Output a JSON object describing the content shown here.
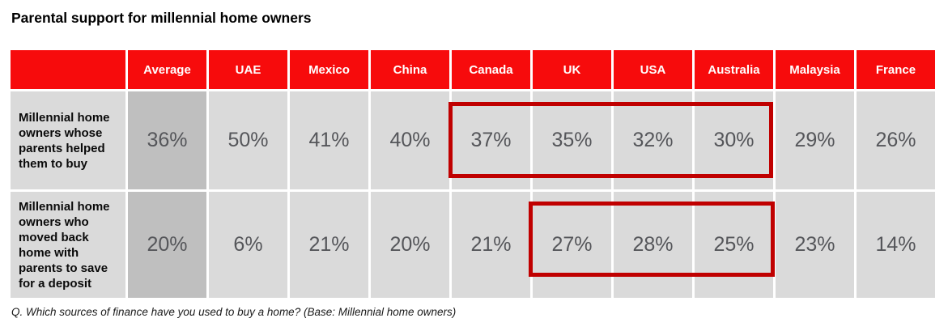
{
  "title": "Parental support for millennial home owners",
  "footnote": "Q. Which sources of finance have you used to buy a home? (Base: Millennial home owners)",
  "colors": {
    "header_red": "#F70B0C",
    "highlight_box_red": "#C00000",
    "cell_gray": "#DADADA",
    "average_column_gray": "#BFBFBF",
    "value_text_gray": "#55565A"
  },
  "table": {
    "columns": [
      "",
      "Average",
      "UAE",
      "Mexico",
      "China",
      "Canada",
      "UK",
      "USA",
      "Australia",
      "Malaysia",
      "France"
    ],
    "rows": [
      {
        "label": "Millennial home owners whose parents helped them to buy",
        "values": [
          "36%",
          "50%",
          "41%",
          "40%",
          "37%",
          "35%",
          "32%",
          "30%",
          "29%",
          "26%"
        ]
      },
      {
        "label": "Millennial home owners who moved back home with parents to save for a deposit",
        "values": [
          "20%",
          "6%",
          "21%",
          "20%",
          "21%",
          "27%",
          "28%",
          "25%",
          "23%",
          "14%"
        ]
      }
    ],
    "highlights": [
      {
        "row_label": "Millennial home owners whose parents helped them to buy",
        "countries": [
          "Canada",
          "UK",
          "USA",
          "Australia"
        ]
      },
      {
        "row_label": "Millennial home owners who moved back home with parents to save for a deposit",
        "countries": [
          "UK",
          "USA",
          "Australia"
        ]
      }
    ]
  },
  "chart_data": {
    "type": "table",
    "title": "Parental support for millennial home owners",
    "categories": [
      "Average",
      "UAE",
      "Mexico",
      "China",
      "Canada",
      "UK",
      "USA",
      "Australia",
      "Malaysia",
      "France"
    ],
    "series": [
      {
        "name": "Millennial home owners whose parents helped them to buy",
        "unit": "%",
        "values": [
          36,
          50,
          41,
          40,
          37,
          35,
          32,
          30,
          29,
          26
        ]
      },
      {
        "name": "Millennial home owners who moved back home with parents to save for a deposit",
        "unit": "%",
        "values": [
          20,
          6,
          21,
          20,
          21,
          27,
          28,
          25,
          23,
          14
        ]
      }
    ],
    "annotations": [
      "Red box highlights row 1 values for Canada, UK, USA, Australia",
      "Red box highlights row 2 values for UK, USA, Australia"
    ],
    "footnote": "Q. Which sources of finance have you used to buy a home? (Base: Millennial home owners)"
  }
}
